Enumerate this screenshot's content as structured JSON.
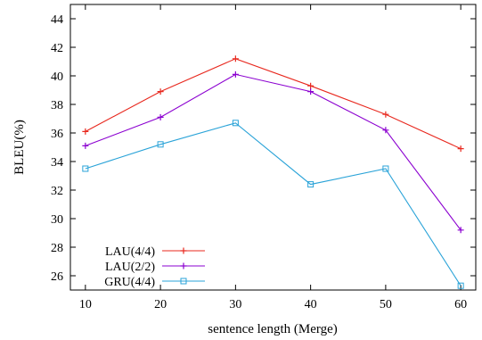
{
  "chart_data": {
    "type": "line",
    "xlabel": "sentence length (Merge)",
    "ylabel": "BLEU(%)",
    "x": [
      10,
      20,
      30,
      40,
      50,
      60
    ],
    "xlim": [
      8,
      62
    ],
    "ylim": [
      25,
      45
    ],
    "xticks": [
      10,
      20,
      30,
      40,
      50,
      60
    ],
    "yticks": [
      26,
      28,
      30,
      32,
      34,
      36,
      38,
      40,
      42,
      44
    ],
    "grid": false,
    "legend_position": "bottom-left",
    "series": [
      {
        "name": "LAU(4/4)",
        "values": [
          36.1,
          38.9,
          41.2,
          39.3,
          37.3,
          34.9
        ],
        "color": "#e8281e",
        "marker": "plus"
      },
      {
        "name": "LAU(2/2)",
        "values": [
          35.1,
          37.1,
          40.1,
          38.9,
          36.2,
          29.2
        ],
        "color": "#8b00d0",
        "marker": "plus"
      },
      {
        "name": "GRU(4/4)",
        "values": [
          33.5,
          35.2,
          36.7,
          32.4,
          33.5,
          25.3
        ],
        "color": "#2aa3d8",
        "marker": "square"
      }
    ]
  }
}
